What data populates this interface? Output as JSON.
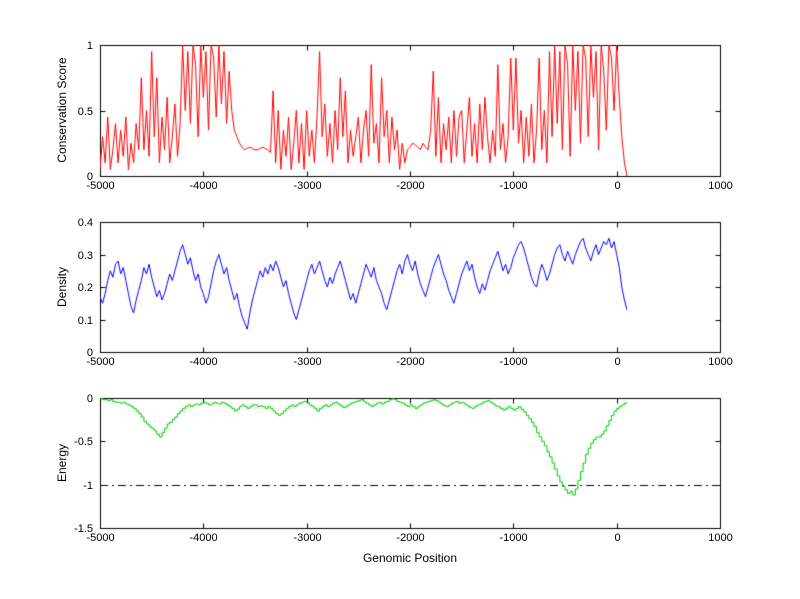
{
  "figure": {
    "background": "#ffffff",
    "xlabel": "Genomic Position",
    "xlim": [
      -5000,
      1000
    ],
    "x_ticks": [
      "-5000",
      "-4000",
      "-3000",
      "-2000",
      "-1000",
      "0",
      "1000"
    ]
  },
  "chart_data": [
    {
      "type": "line",
      "title": "",
      "ylabel": "Conservation Score",
      "ylim": [
        0,
        1
      ],
      "yticks": [
        "0",
        "0.5",
        "1"
      ],
      "x_start": -5000,
      "x_step": 25,
      "series": [
        {
          "name": "conservation-score",
          "color": "#ff0000",
          "values": [
            0.05,
            0.3,
            0.1,
            0.45,
            0.05,
            0.2,
            0.4,
            0.1,
            0.35,
            0.15,
            0.45,
            0.05,
            0.25,
            0.1,
            0.4,
            0.2,
            0.75,
            0.2,
            0.5,
            0.15,
            0.95,
            0.3,
            0.75,
            0.1,
            0.45,
            0.2,
            0.6,
            0.1,
            0.3,
            0.55,
            0.15,
            0.4,
            1,
            0.5,
            0.95,
            0.4,
            1,
            0.85,
            0.3,
            1,
            0.6,
            0.95,
            0.35,
            1,
            0.9,
            0.45,
            1,
            0.55,
            0.95,
            0.4,
            0.8,
            0.5,
            0.35,
            0.3,
            0.25,
            0.22,
            0.2,
            0.21,
            0.22,
            0.21,
            0.2,
            0.2,
            0.21,
            0.22,
            0.21,
            0.2,
            0.18,
            0.65,
            0.1,
            0.5,
            0.05,
            0.35,
            0.15,
            0.45,
            0.05,
            0.25,
            0.5,
            0.1,
            0.4,
            0.05,
            0.5,
            0.15,
            0.35,
            0.1,
            0.45,
            0.95,
            0.3,
            0.55,
            0.15,
            0.4,
            0.1,
            0.5,
            0.2,
            0.75,
            0.3,
            0.65,
            0.1,
            0.35,
            0.15,
            0.3,
            0.45,
            0.1,
            0.35,
            0.5,
            0.15,
            0.85,
            0.25,
            0.4,
            0.1,
            0.75,
            0.3,
            0.5,
            0.1,
            0.45,
            0.2,
            0.35,
            0.05,
            0.25,
            0.1,
            0.2,
            0.22,
            0.25,
            0.24,
            0.22,
            0.2,
            0.25,
            0.22,
            0.2,
            0.35,
            0.8,
            0.15,
            0.6,
            0.1,
            0.4,
            0.2,
            0.45,
            0.1,
            0.5,
            0.15,
            0.45,
            0.5,
            0.1,
            0.35,
            0.6,
            0.15,
            0.4,
            0.1,
            0.55,
            0.2,
            0.6,
            0.3,
            0.1,
            0.35,
            0.15,
            0.85,
            0.2,
            0.4,
            0.1,
            0.3,
            0.9,
            0.35,
            0.9,
            0.25,
            0.5,
            0.1,
            0.45,
            0.15,
            0.55,
            0.1,
            0.35,
            0.9,
            0.2,
            0.5,
            0.1,
            0.95,
            0.3,
            1,
            0.4,
            0.95,
            0.2,
            1,
            0.85,
            0.15,
            1,
            0.5,
            0.95,
            0.25,
            1,
            0.9,
            0.3,
            1,
            0.6,
            0.95,
            0.2,
            1,
            0.8,
            0.35,
            1,
            0.9,
            0.5,
            1,
            0.6,
            0.3,
            0.1,
            0
          ]
        }
      ]
    },
    {
      "type": "line",
      "title": "",
      "ylabel": "Density",
      "ylim": [
        0,
        0.4
      ],
      "yticks": [
        "0",
        "0.1",
        "0.2",
        "0.3",
        "0.4"
      ],
      "x_start": -5000,
      "x_step": 25,
      "series": [
        {
          "name": "density",
          "color": "#0000ff",
          "values": [
            0.17,
            0.15,
            0.18,
            0.22,
            0.25,
            0.23,
            0.27,
            0.28,
            0.24,
            0.26,
            0.22,
            0.18,
            0.14,
            0.12,
            0.16,
            0.19,
            0.22,
            0.26,
            0.24,
            0.27,
            0.23,
            0.2,
            0.17,
            0.19,
            0.16,
            0.18,
            0.21,
            0.24,
            0.22,
            0.25,
            0.28,
            0.31,
            0.33,
            0.3,
            0.27,
            0.29,
            0.25,
            0.22,
            0.24,
            0.2,
            0.18,
            0.15,
            0.17,
            0.21,
            0.25,
            0.28,
            0.3,
            0.27,
            0.24,
            0.26,
            0.22,
            0.19,
            0.16,
            0.18,
            0.14,
            0.11,
            0.09,
            0.07,
            0.12,
            0.16,
            0.19,
            0.22,
            0.25,
            0.23,
            0.26,
            0.24,
            0.27,
            0.25,
            0.28,
            0.26,
            0.23,
            0.2,
            0.22,
            0.18,
            0.15,
            0.12,
            0.1,
            0.13,
            0.16,
            0.19,
            0.22,
            0.25,
            0.27,
            0.24,
            0.26,
            0.28,
            0.25,
            0.22,
            0.2,
            0.23,
            0.21,
            0.24,
            0.26,
            0.28,
            0.25,
            0.22,
            0.19,
            0.16,
            0.18,
            0.15,
            0.18,
            0.21,
            0.24,
            0.27,
            0.25,
            0.23,
            0.26,
            0.22,
            0.2,
            0.18,
            0.15,
            0.13,
            0.16,
            0.19,
            0.22,
            0.25,
            0.27,
            0.24,
            0.28,
            0.3,
            0.27,
            0.25,
            0.28,
            0.24,
            0.21,
            0.19,
            0.17,
            0.2,
            0.23,
            0.26,
            0.28,
            0.3,
            0.27,
            0.24,
            0.22,
            0.19,
            0.17,
            0.15,
            0.18,
            0.21,
            0.24,
            0.26,
            0.28,
            0.25,
            0.27,
            0.23,
            0.2,
            0.18,
            0.21,
            0.19,
            0.22,
            0.25,
            0.27,
            0.29,
            0.31,
            0.28,
            0.25,
            0.27,
            0.24,
            0.26,
            0.29,
            0.31,
            0.33,
            0.34,
            0.32,
            0.29,
            0.26,
            0.23,
            0.21,
            0.2,
            0.24,
            0.27,
            0.25,
            0.22,
            0.24,
            0.27,
            0.3,
            0.32,
            0.33,
            0.3,
            0.28,
            0.31,
            0.29,
            0.27,
            0.3,
            0.32,
            0.34,
            0.35,
            0.32,
            0.3,
            0.28,
            0.31,
            0.33,
            0.3,
            0.32,
            0.34,
            0.33,
            0.35,
            0.32,
            0.34,
            0.3,
            0.26,
            0.2,
            0.16,
            0.13
          ]
        }
      ]
    },
    {
      "type": "step",
      "title": "",
      "ylabel": "Energy",
      "ylim": [
        -1.5,
        0
      ],
      "yticks": [
        "-1.5",
        "-1",
        "-0.5",
        "0"
      ],
      "x_start": -5000,
      "x_step": 25,
      "reference_line": {
        "y": -1,
        "style": "dash-dot",
        "color": "#000000"
      },
      "series": [
        {
          "name": "energy",
          "color": "#00cc00",
          "values": [
            0,
            -0.02,
            -0.02,
            -0.03,
            -0.02,
            -0.04,
            -0.05,
            -0.05,
            -0.06,
            -0.05,
            -0.07,
            -0.08,
            -0.1,
            -0.12,
            -0.15,
            -0.18,
            -0.22,
            -0.27,
            -0.3,
            -0.33,
            -0.35,
            -0.38,
            -0.42,
            -0.45,
            -0.4,
            -0.35,
            -0.3,
            -0.28,
            -0.25,
            -0.22,
            -0.18,
            -0.15,
            -0.12,
            -0.1,
            -0.08,
            -0.1,
            -0.08,
            -0.07,
            -0.08,
            -0.06,
            -0.05,
            -0.06,
            -0.08,
            -0.07,
            -0.05,
            -0.06,
            -0.07,
            -0.05,
            -0.06,
            -0.08,
            -0.1,
            -0.12,
            -0.15,
            -0.13,
            -0.1,
            -0.08,
            -0.1,
            -0.12,
            -0.1,
            -0.08,
            -0.08,
            -0.1,
            -0.09,
            -0.1,
            -0.12,
            -0.1,
            -0.12,
            -0.15,
            -0.18,
            -0.2,
            -0.18,
            -0.15,
            -0.12,
            -0.1,
            -0.08,
            -0.1,
            -0.08,
            -0.06,
            -0.05,
            -0.04,
            -0.05,
            -0.08,
            -0.1,
            -0.12,
            -0.15,
            -0.12,
            -0.1,
            -0.08,
            -0.1,
            -0.08,
            -0.06,
            -0.05,
            -0.07,
            -0.09,
            -0.11,
            -0.1,
            -0.08,
            -0.06,
            -0.05,
            -0.04,
            -0.03,
            -0.02,
            -0.04,
            -0.06,
            -0.08,
            -0.1,
            -0.08,
            -0.06,
            -0.05,
            -0.07,
            -0.05,
            -0.04,
            -0.02,
            -0.01,
            -0.02,
            -0.04,
            -0.05,
            -0.06,
            -0.08,
            -0.1,
            -0.08,
            -0.1,
            -0.12,
            -0.1,
            -0.08,
            -0.06,
            -0.05,
            -0.04,
            -0.03,
            -0.02,
            -0.03,
            -0.05,
            -0.07,
            -0.09,
            -0.1,
            -0.08,
            -0.06,
            -0.05,
            -0.04,
            -0.06,
            -0.05,
            -0.07,
            -0.09,
            -0.11,
            -0.12,
            -0.1,
            -0.08,
            -0.07,
            -0.05,
            -0.04,
            -0.03,
            -0.05,
            -0.07,
            -0.09,
            -0.1,
            -0.12,
            -0.14,
            -0.12,
            -0.1,
            -0.12,
            -0.14,
            -0.12,
            -0.1,
            -0.13,
            -0.16,
            -0.2,
            -0.24,
            -0.28,
            -0.33,
            -0.4,
            -0.45,
            -0.5,
            -0.55,
            -0.62,
            -0.68,
            -0.75,
            -0.82,
            -0.9,
            -0.97,
            -1.02,
            -1.06,
            -1.1,
            -1.08,
            -1.12,
            -1.05,
            -0.95,
            -0.85,
            -0.75,
            -0.65,
            -0.58,
            -0.52,
            -0.48,
            -0.45,
            -0.45,
            -0.42,
            -0.38,
            -0.32,
            -0.26,
            -0.2,
            -0.15,
            -0.12,
            -0.1,
            -0.08,
            -0.06,
            -0.05
          ]
        }
      ]
    }
  ]
}
